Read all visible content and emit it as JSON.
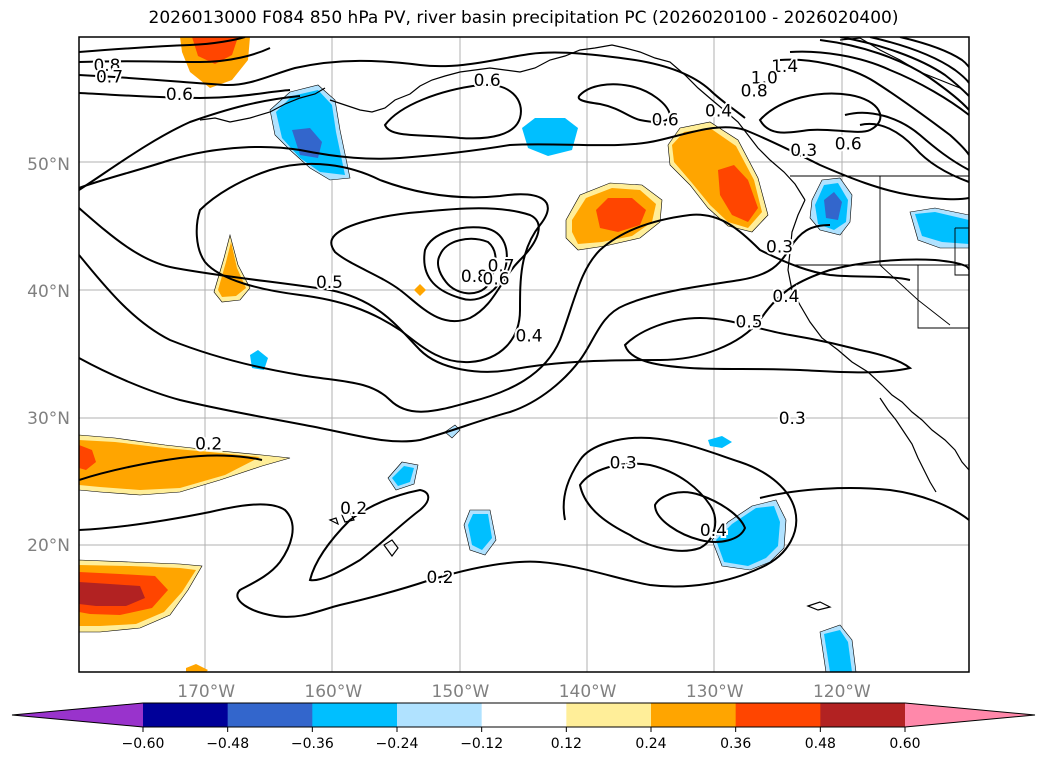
{
  "title": "2026013000 F084 850 hPa PV, river basin precipitation PC (2026020100 - 2026020400)",
  "lat_labels": [
    {
      "text": "50°N",
      "lat": 50
    },
    {
      "text": "40°N",
      "lat": 40
    },
    {
      "text": "30°N",
      "lat": 30
    },
    {
      "text": "20°N",
      "lat": 20
    }
  ],
  "lon_labels": [
    {
      "text": "170°W",
      "lon": -170
    },
    {
      "text": "160°W",
      "lon": -160
    },
    {
      "text": "150°W",
      "lon": -150
    },
    {
      "text": "140°W",
      "lon": -140
    },
    {
      "text": "130°W",
      "lon": -130
    },
    {
      "text": "120°W",
      "lon": -120
    }
  ],
  "contour_labels": [
    {
      "text": "0.8",
      "lon": -177.8,
      "lat": 57.8
    },
    {
      "text": "0.7",
      "lon": -177.6,
      "lat": 56.9
    },
    {
      "text": "0.6",
      "lon": -172.1,
      "lat": 55.5
    },
    {
      "text": "0.6",
      "lon": -147.9,
      "lat": 56.6
    },
    {
      "text": "0.6",
      "lon": -133.9,
      "lat": 53.5
    },
    {
      "text": "0.4",
      "lon": -129.7,
      "lat": 54.2
    },
    {
      "text": "1.4",
      "lon": -124.5,
      "lat": 57.7
    },
    {
      "text": "1.0",
      "lon": -126.1,
      "lat": 56.8
    },
    {
      "text": "0.8",
      "lon": -126.9,
      "lat": 55.8
    },
    {
      "text": "0.3",
      "lon": -123.0,
      "lat": 51.1
    },
    {
      "text": "0.6",
      "lon": -119.5,
      "lat": 51.6
    },
    {
      "text": "0.8",
      "lon": -148.9,
      "lat": 41.2
    },
    {
      "text": "0.7",
      "lon": -146.8,
      "lat": 42.0
    },
    {
      "text": "0.6",
      "lon": -147.2,
      "lat": 41.0
    },
    {
      "text": "0.5",
      "lon": -160.3,
      "lat": 40.7
    },
    {
      "text": "0.4",
      "lon": -144.6,
      "lat": 36.5
    },
    {
      "text": "0.3",
      "lon": -124.9,
      "lat": 43.5
    },
    {
      "text": "0.4",
      "lon": -124.4,
      "lat": 39.6
    },
    {
      "text": "0.5",
      "lon": -127.3,
      "lat": 37.6
    },
    {
      "text": "0.3",
      "lon": -123.9,
      "lat": 30.0
    },
    {
      "text": "0.2",
      "lon": -169.8,
      "lat": 28.0
    },
    {
      "text": "0.2",
      "lon": -158.4,
      "lat": 22.9
    },
    {
      "text": "0.2",
      "lon": -151.6,
      "lat": 17.5
    },
    {
      "text": "0.3",
      "lon": -137.2,
      "lat": 26.5
    },
    {
      "text": "0.4",
      "lon": -130.1,
      "lat": 21.2
    }
  ],
  "colorbar": {
    "tick_labels": [
      "−0.60",
      "−0.48",
      "−0.36",
      "−0.24",
      "−0.12",
      "0.12",
      "0.24",
      "0.36",
      "0.48",
      "0.60"
    ],
    "colors": [
      "#9933cc",
      "#000099",
      "#3366cc",
      "#00bfff",
      "#b0e2ff",
      "#ffffff",
      "#ffee99",
      "#ffa500",
      "#ff4500",
      "#b22222",
      "#ff88aa"
    ]
  },
  "fill_colors": {
    "neg1": "#b0e2ff",
    "neg2": "#00bfff",
    "neg3": "#3366cc",
    "pos1": "#ffee99",
    "pos2": "#ffa500",
    "pos3": "#ff4500",
    "pos4": "#b22222"
  }
}
